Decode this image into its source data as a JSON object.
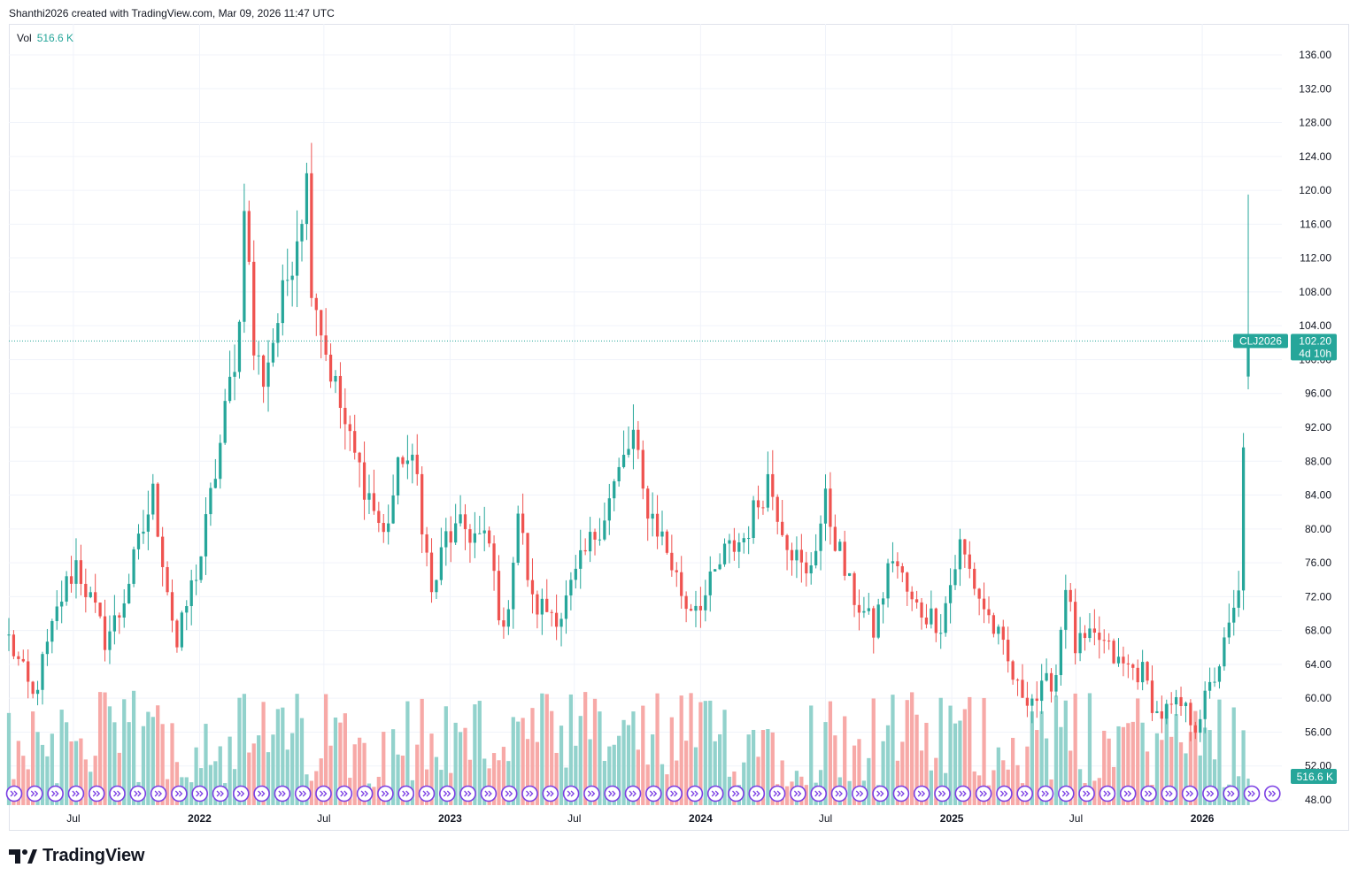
{
  "header": {
    "attribution": "Shanthi2026 created with TradingView.com, Mar 09, 2026 11:47 UTC"
  },
  "volume": {
    "label": "Vol",
    "value": "516.6 K",
    "badge": "516.6 K"
  },
  "brand": {
    "name": "TradingView"
  },
  "price_label": {
    "symbol": "CLJ2026",
    "price": "102.20",
    "countdown": "4d 10h"
  },
  "colors": {
    "up": "#26a69a",
    "down": "#ef5350",
    "up_vol": "#92d2cc",
    "down_vol": "#f7a9a7",
    "grid": "#f0f3fa",
    "event": "#7b3fe4"
  },
  "chart_data": {
    "type": "candlestick",
    "interval": "weekly",
    "y_axis": {
      "min": 48,
      "max": 136,
      "ticks": [
        "136.00",
        "132.00",
        "128.00",
        "124.00",
        "120.00",
        "116.00",
        "112.00",
        "108.00",
        "104.00",
        "100.00",
        "96.00",
        "92.00",
        "88.00",
        "84.00",
        "80.00",
        "76.00",
        "72.00",
        "68.00",
        "64.00",
        "60.00",
        "56.00",
        "52.00",
        "48.00"
      ]
    },
    "x_axis": {
      "start": "2021-03-29",
      "end": "2026-04-27",
      "ticks": [
        {
          "label": "Jul",
          "date": "2021-07-01",
          "bold": false
        },
        {
          "label": "2022",
          "date": "2022-01-01",
          "bold": true
        },
        {
          "label": "Jul",
          "date": "2022-07-01",
          "bold": false
        },
        {
          "label": "2023",
          "date": "2023-01-01",
          "bold": true
        },
        {
          "label": "Jul",
          "date": "2023-07-01",
          "bold": false
        },
        {
          "label": "2024",
          "date": "2024-01-01",
          "bold": true
        },
        {
          "label": "Jul",
          "date": "2024-07-01",
          "bold": false
        },
        {
          "label": "2025",
          "date": "2025-01-01",
          "bold": true
        },
        {
          "label": "Jul",
          "date": "2025-07-01",
          "bold": false
        },
        {
          "label": "2026",
          "date": "2026-01-01",
          "bold": true
        }
      ]
    },
    "last_price": 102.2,
    "grid": true,
    "anchors": [
      [
        "2021-03-29",
        67
      ],
      [
        "2021-05-03",
        60
      ],
      [
        "2021-06-14",
        72
      ],
      [
        "2021-07-05",
        76
      ],
      [
        "2021-08-16",
        67
      ],
      [
        "2021-09-06",
        70
      ],
      [
        "2021-10-04",
        78
      ],
      [
        "2021-10-25",
        84
      ],
      [
        "2021-11-29",
        66
      ],
      [
        "2021-12-13",
        71
      ],
      [
        "2022-01-03",
        77
      ],
      [
        "2022-01-31",
        90
      ],
      [
        "2022-02-28",
        104
      ],
      [
        "2022-03-07",
        120
      ],
      [
        "2022-03-21",
        101
      ],
      [
        "2022-04-04",
        98
      ],
      [
        "2022-05-02",
        107
      ],
      [
        "2022-06-06",
        121
      ],
      [
        "2022-06-13",
        110
      ],
      [
        "2022-07-04",
        101
      ],
      [
        "2022-08-08",
        90
      ],
      [
        "2022-09-05",
        84
      ],
      [
        "2022-09-26",
        79
      ],
      [
        "2022-10-24",
        89
      ],
      [
        "2022-11-14",
        86
      ],
      [
        "2022-12-05",
        72
      ],
      [
        "2022-12-26",
        79
      ],
      [
        "2023-01-23",
        80
      ],
      [
        "2023-02-27",
        78
      ],
      [
        "2023-03-20",
        67
      ],
      [
        "2023-04-10",
        82
      ],
      [
        "2023-05-01",
        71
      ],
      [
        "2023-06-12",
        70
      ],
      [
        "2023-07-17",
        77
      ],
      [
        "2023-08-14",
        82
      ],
      [
        "2023-09-25",
        91
      ],
      [
        "2023-10-09",
        84
      ],
      [
        "2023-11-06",
        79
      ],
      [
        "2023-12-11",
        71
      ],
      [
        "2024-01-08",
        72
      ],
      [
        "2024-02-05",
        77
      ],
      [
        "2024-03-04",
        79
      ],
      [
        "2024-04-08",
        86
      ],
      [
        "2024-05-06",
        79
      ],
      [
        "2024-06-03",
        74
      ],
      [
        "2024-07-01",
        83
      ],
      [
        "2024-08-05",
        73
      ],
      [
        "2024-09-09",
        68
      ],
      [
        "2024-10-07",
        77
      ],
      [
        "2024-11-04",
        71
      ],
      [
        "2024-12-16",
        69
      ],
      [
        "2025-01-13",
        78
      ],
      [
        "2025-02-10",
        72
      ],
      [
        "2025-03-10",
        67
      ],
      [
        "2025-04-07",
        61
      ],
      [
        "2025-05-05",
        60
      ],
      [
        "2025-06-02",
        63
      ],
      [
        "2025-06-16",
        74
      ],
      [
        "2025-06-30",
        66
      ],
      [
        "2025-08-04",
        67
      ],
      [
        "2025-09-01",
        64
      ],
      [
        "2025-10-06",
        63
      ],
      [
        "2025-10-27",
        58
      ],
      [
        "2025-12-01",
        59
      ],
      [
        "2025-12-22",
        57
      ],
      [
        "2026-01-12",
        61
      ],
      [
        "2026-02-02",
        66
      ],
      [
        "2026-02-23",
        72
      ],
      [
        "2026-03-02",
        91
      ],
      [
        "2026-03-09",
        102.2
      ]
    ],
    "last_candle": {
      "date": "2026-03-09",
      "open": 98.0,
      "high": 119.5,
      "low": 96.5,
      "close": 102.2
    }
  }
}
